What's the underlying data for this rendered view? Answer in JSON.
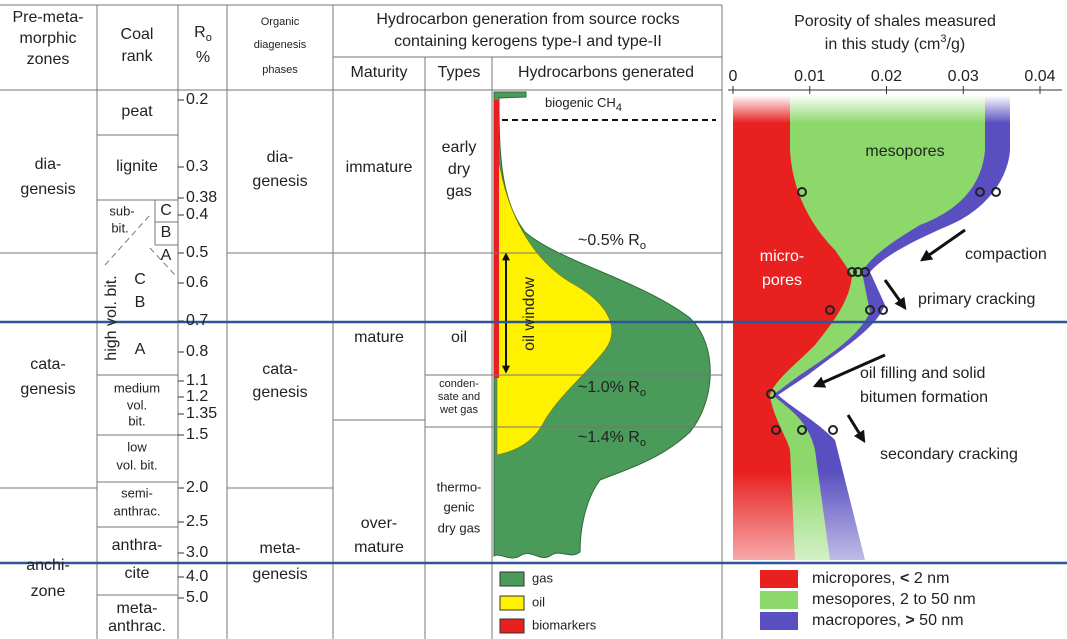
{
  "header": {
    "zones": [
      "Pre-meta-",
      "morphic",
      "zones"
    ],
    "coal_rank": [
      "Coal",
      "rank"
    ],
    "ro": {
      "symbol": "R",
      "sub": "o",
      "unit": "%"
    },
    "phases": [
      "Organic",
      "diagenesis",
      "phases"
    ],
    "hc_title": [
      "Hydrocarbon generation from source rocks",
      "containing kerogens type-I and type-II"
    ],
    "maturity": "Maturity",
    "types": "Types",
    "generated": "Hydrocarbons generated",
    "porosity_title": {
      "line1": "Porosity of shales measured",
      "line2": "in this study (cm",
      "sup": "3",
      "end": "/g)"
    },
    "porosity_ticks": [
      0,
      0.01,
      0.02,
      0.03,
      0.04
    ]
  },
  "zones": [
    [
      "dia-",
      "genesis"
    ],
    [
      "cata-",
      "genesis"
    ],
    [
      "anchi-",
      "zone"
    ]
  ],
  "coal_ranks": {
    "peat": "peat",
    "lignite": "lignite",
    "subbit": {
      "lines": [
        "sub-",
        "bit."
      ],
      "classes": [
        "C",
        "B",
        "A"
      ]
    },
    "hvb": {
      "name": "high vol. bit.",
      "classes": [
        "C",
        "B",
        "A"
      ]
    },
    "medium": [
      "medium",
      "vol.",
      "bit."
    ],
    "low": [
      "low",
      "vol. bit."
    ],
    "semi": [
      "semi-",
      "anthrac."
    ],
    "anthracite": [
      "anthra-",
      "cite"
    ],
    "meta": [
      "meta-",
      "anthrac."
    ]
  },
  "ro_values": [
    "0.2",
    "0.3",
    "0.38",
    "0.4",
    "0.5",
    "0.6",
    "0.7",
    "0.8",
    "1.1",
    "1.2",
    "1.35",
    "1.5",
    "2.0",
    "2.5",
    "3.0",
    "4.0",
    "5.0"
  ],
  "phases": [
    [
      "dia-",
      "genesis"
    ],
    [
      "cata-",
      "genesis"
    ],
    [
      "meta-",
      "genesis"
    ]
  ],
  "maturity": [
    [
      "immature"
    ],
    [
      "mature"
    ],
    [
      "over-",
      "mature"
    ]
  ],
  "types": [
    [
      "early",
      "dry",
      "gas"
    ],
    [
      "oil"
    ],
    [
      "conden-",
      "sate and",
      "wet gas"
    ],
    [
      "thermo-",
      "genic",
      "dry gas"
    ]
  ],
  "annotations": {
    "biogenic": {
      "text": "biogenic CH",
      "sub": "4"
    },
    "ro05": {
      "text": "~0.5% R",
      "sub": "o"
    },
    "ro10": {
      "text": "~1.0% R",
      "sub": "o"
    },
    "ro14": {
      "text": "~1.4% R",
      "sub": "o"
    },
    "oil_window": "oil window"
  },
  "porosity_labels": {
    "mesopores": "mesopores",
    "micropores": [
      "micro-",
      "pores"
    ],
    "compaction": "compaction",
    "primary": "primary cracking",
    "oil_filling": [
      "oil filling and solid",
      "bitumen formation"
    ],
    "secondary": "secondary cracking"
  },
  "legend_hc": [
    "gas",
    "oil",
    "biomarkers"
  ],
  "legend_pores": [
    {
      "name": "micropores, ",
      "sym": "<",
      "size": " 2 nm"
    },
    {
      "name": "mesopores, 2 to 50 nm"
    },
    {
      "name": "macropores, ",
      "sym": ">",
      "size": " 50 nm"
    }
  ]
}
